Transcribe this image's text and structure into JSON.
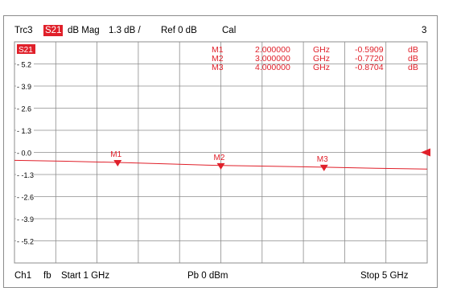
{
  "header": {
    "trace": "Trc3",
    "param": "S21",
    "format": "dB Mag",
    "scale": "1.3 dB /",
    "ref": "Ref 0 dB",
    "cal": "Cal",
    "index": "3"
  },
  "footer": {
    "channel": "Ch1",
    "fb": "fb",
    "start": "Start  1 GHz",
    "power": "Pb    0 dBm",
    "stop": "Stop  5 GHz"
  },
  "markers_table": [
    {
      "name": "M1",
      "freq": "2.000000",
      "unit": "GHz",
      "value": "-0.5909",
      "vunit": "dB"
    },
    {
      "name": "M2",
      "freq": "3.000000",
      "unit": "GHz",
      "value": "-0.7720",
      "vunit": "dB"
    },
    {
      "name": "M3",
      "freq": "4.000000",
      "unit": "GHz",
      "value": "-0.8704",
      "vunit": "dB"
    }
  ],
  "colors": {
    "trace": "#e0202a",
    "grid": "#8c8c8c",
    "text": "#000000"
  },
  "chart_data": {
    "type": "line",
    "title": "",
    "xlabel": "",
    "ylabel": "",
    "trace_label": "S21",
    "xlim": [
      1,
      5
    ],
    "ylim": [
      -6.5,
      6.5
    ],
    "x_unit": "GHz",
    "y_unit": "dB",
    "yticks": [
      5.2,
      3.9,
      2.6,
      1.3,
      0.0,
      -1.3,
      -2.6,
      -3.9,
      -5.2
    ],
    "ytick_labels": [
      "5.2",
      "3.9",
      "2.6",
      "1.3",
      "0.0",
      "-1.3",
      "-2.6",
      "-3.9",
      "-5.2"
    ],
    "grid": true,
    "reference_level": 0,
    "series": [
      {
        "x": [
          1.0,
          1.5,
          2.0,
          2.5,
          3.0,
          3.5,
          4.0,
          4.5,
          5.0
        ],
        "values": [
          -0.47,
          -0.52,
          -0.59,
          -0.68,
          -0.77,
          -0.82,
          -0.87,
          -0.93,
          -0.98
        ]
      }
    ],
    "markers": [
      {
        "label": "M1",
        "x": 2.0,
        "y": -0.5909
      },
      {
        "label": "M2",
        "x": 3.0,
        "y": -0.772
      },
      {
        "label": "M3",
        "x": 4.0,
        "y": -0.8704
      }
    ]
  }
}
